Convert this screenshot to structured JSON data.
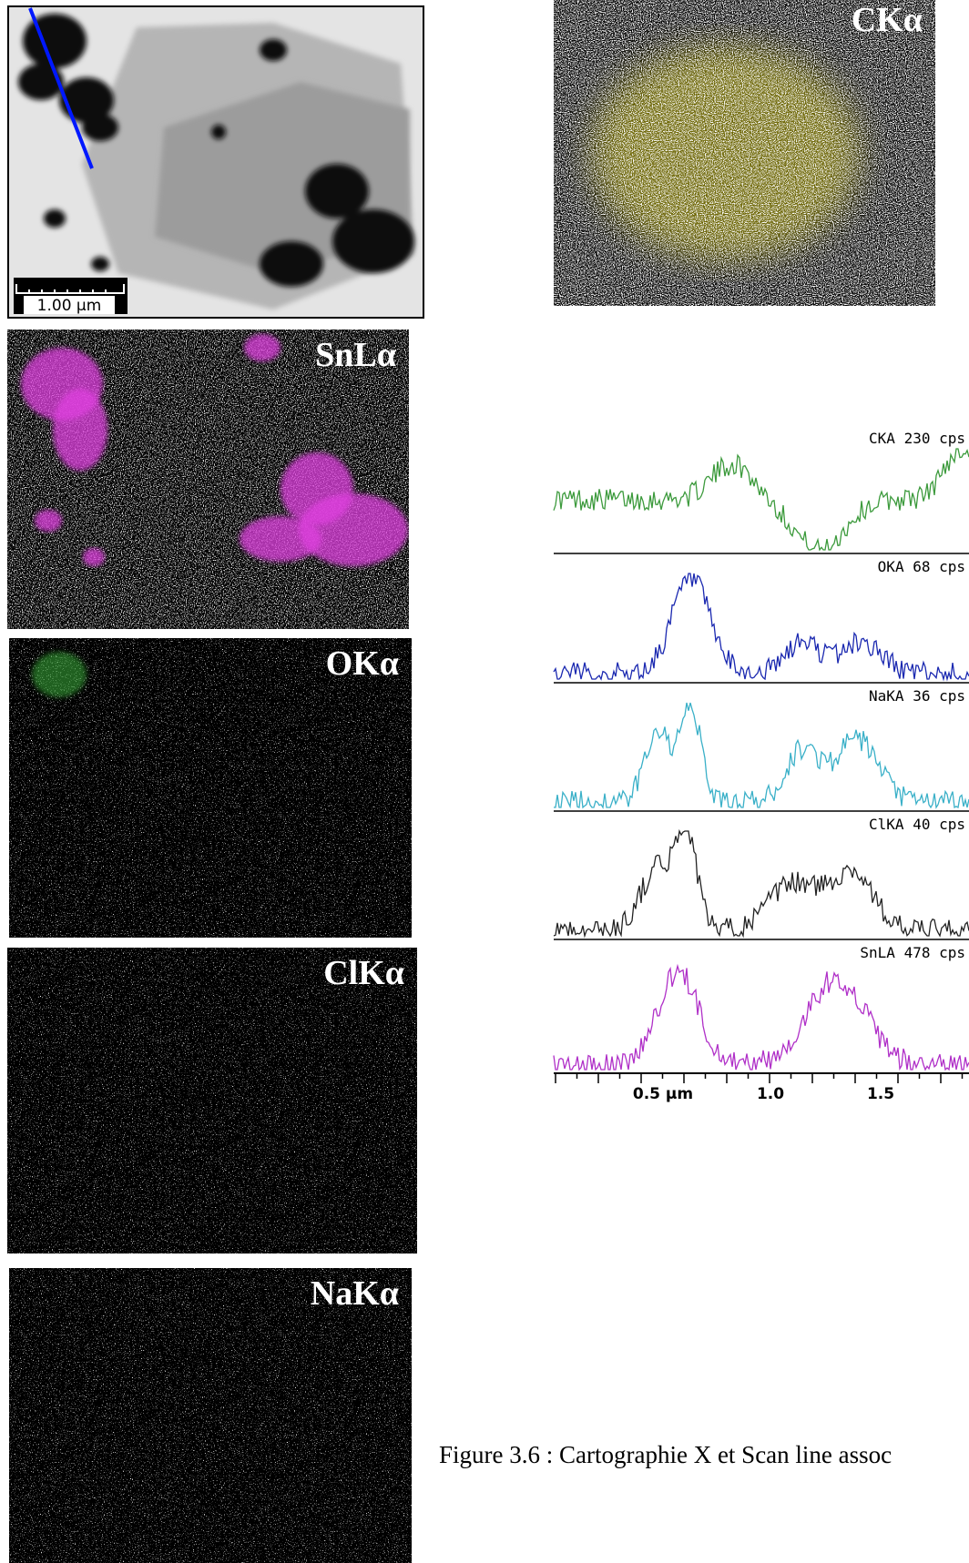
{
  "tem_image": {
    "scale_bar": "1.00 µm"
  },
  "maps": [
    {
      "label": "CKα"
    },
    {
      "label": "SnLα"
    },
    {
      "label": "OKα"
    },
    {
      "label": "ClKα"
    },
    {
      "label": "NaKα"
    }
  ],
  "line_scan": {
    "profiles": [
      {
        "label": "CKA 230 cps"
      },
      {
        "label": "OKA 68 cps"
      },
      {
        "label": "NaKA 36 cps"
      },
      {
        "label": "ClKA 40 cps"
      },
      {
        "label": "SnLA 478 cps"
      }
    ],
    "axis_labels": [
      "0.5 µm",
      "1.0",
      "1.5"
    ]
  },
  "caption": "Figure 3.6 : Cartographie X et Scan line assoc"
}
